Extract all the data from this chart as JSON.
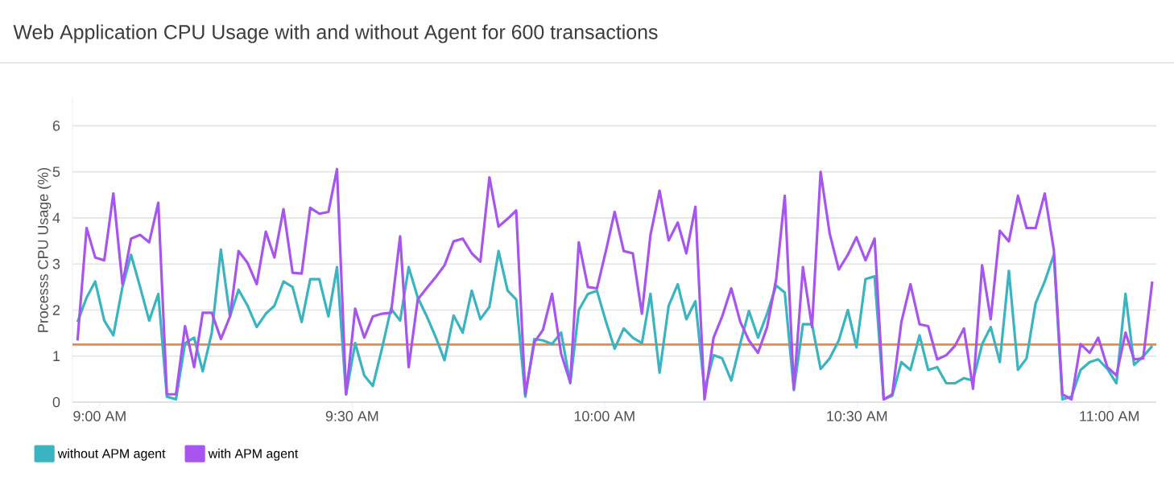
{
  "chart_data": {
    "type": "line",
    "title": "Web Application CPU Usage with and without Agent for 600 transactions",
    "ylabel": "Processs CPU Usage (%)",
    "x": [
      8.956,
      8.974,
      8.991,
      9.009,
      9.027,
      9.045,
      9.062,
      9.08,
      9.098,
      9.116,
      9.133,
      9.151,
      9.169,
      9.187,
      9.204,
      9.222,
      9.24,
      9.258,
      9.275,
      9.293,
      9.311,
      9.329,
      9.346,
      9.364,
      9.382,
      9.4,
      9.417,
      9.435,
      9.453,
      9.47,
      9.488,
      9.506,
      9.524,
      9.541,
      9.559,
      9.577,
      9.595,
      9.612,
      9.63,
      9.648,
      9.666,
      9.683,
      9.701,
      9.719,
      9.737,
      9.754,
      9.772,
      9.79,
      9.808,
      9.825,
      9.843,
      9.861,
      9.878,
      9.896,
      9.914,
      9.932,
      9.949,
      9.967,
      9.985,
      10.003,
      10.02,
      10.038,
      10.056,
      10.074,
      10.091,
      10.109,
      10.127,
      10.145,
      10.162,
      10.18,
      10.198,
      10.216,
      10.233,
      10.251,
      10.269,
      10.286,
      10.304,
      10.322,
      10.34,
      10.357,
      10.375,
      10.393,
      10.411,
      10.428,
      10.446,
      10.464,
      10.482,
      10.499,
      10.517,
      10.535,
      10.553,
      10.57,
      10.588,
      10.606,
      10.624,
      10.641,
      10.659,
      10.677,
      10.694,
      10.712,
      10.73,
      10.748,
      10.765,
      10.783,
      10.801,
      10.819,
      10.836,
      10.854,
      10.872,
      10.89,
      10.907,
      10.925,
      10.943,
      10.961,
      10.978,
      10.996,
      11.014,
      11.032,
      11.049,
      11.067,
      11.085
    ],
    "series": [
      {
        "name": "without APM agent",
        "color": "#3ab4c0",
        "values": [
          1.74,
          2.27,
          2.62,
          1.77,
          1.45,
          2.5,
          3.2,
          2.5,
          1.77,
          2.35,
          0.12,
          0.06,
          1.28,
          1.4,
          0.67,
          1.51,
          3.31,
          1.86,
          2.44,
          2.09,
          1.63,
          1.92,
          2.09,
          2.62,
          2.5,
          1.74,
          2.67,
          2.67,
          1.86,
          2.93,
          0.17,
          1.28,
          0.58,
          0.35,
          1.16,
          2.03,
          1.77,
          2.93,
          2.27,
          1.86,
          1.4,
          0.91,
          1.88,
          1.51,
          2.42,
          1.8,
          2.07,
          3.28,
          2.42,
          2.23,
          0.12,
          1.37,
          1.34,
          1.26,
          1.51,
          0.41,
          2.0,
          2.35,
          2.42,
          1.74,
          1.16,
          1.6,
          1.4,
          1.28,
          2.35,
          0.64,
          2.09,
          2.56,
          1.8,
          2.19,
          0.26,
          1.02,
          0.95,
          0.47,
          1.28,
          1.98,
          1.4,
          1.92,
          2.53,
          2.38,
          0.26,
          1.69,
          1.69,
          0.72,
          0.95,
          1.34,
          2.0,
          1.19,
          2.67,
          2.73,
          0.06,
          0.14,
          0.87,
          0.7,
          1.45,
          0.7,
          0.76,
          0.41,
          0.41,
          0.52,
          0.47,
          1.26,
          1.63,
          0.87,
          2.85,
          0.7,
          0.95,
          2.15,
          2.62,
          3.2,
          0.06,
          0.12,
          0.7,
          0.87,
          0.93,
          0.72,
          0.41,
          2.35,
          0.81,
          0.99,
          1.22
        ]
      },
      {
        "name": "with APM agent",
        "color": "#a855f0",
        "values": [
          1.34,
          3.78,
          3.14,
          3.08,
          4.53,
          2.56,
          3.55,
          3.63,
          3.47,
          4.33,
          0.17,
          0.17,
          1.65,
          0.76,
          1.94,
          1.94,
          1.37,
          1.86,
          3.28,
          3.02,
          2.56,
          3.7,
          3.14,
          4.19,
          2.81,
          2.79,
          4.22,
          4.09,
          4.13,
          5.06,
          0.17,
          2.03,
          1.4,
          1.86,
          1.92,
          1.94,
          3.6,
          0.76,
          2.23,
          2.48,
          2.72,
          2.97,
          3.49,
          3.55,
          3.23,
          3.05,
          4.88,
          3.81,
          3.98,
          4.16,
          0.17,
          1.3,
          1.57,
          2.35,
          1.05,
          0.43,
          3.47,
          2.5,
          2.47,
          3.3,
          4.13,
          3.28,
          3.23,
          1.92,
          3.63,
          4.59,
          3.51,
          3.9,
          3.23,
          4.24,
          0.06,
          1.4,
          1.86,
          2.47,
          1.74,
          1.34,
          1.07,
          1.63,
          2.67,
          4.48,
          0.29,
          2.93,
          1.63,
          5.0,
          3.66,
          2.88,
          3.2,
          3.58,
          3.08,
          3.55,
          0.06,
          0.17,
          1.74,
          2.56,
          1.69,
          1.65,
          0.93,
          1.02,
          1.22,
          1.6,
          0.29,
          2.97,
          1.8,
          3.72,
          3.49,
          4.48,
          3.78,
          3.78,
          4.53,
          3.31,
          0.17,
          0.06,
          1.26,
          1.07,
          1.4,
          0.76,
          0.58,
          1.51,
          0.93,
          0.95,
          2.62
        ]
      }
    ],
    "xlim": [
      8.946,
      11.093
    ],
    "ylim": [
      0,
      6.6
    ],
    "xticks": [
      {
        "value": 9,
        "label": "9:00 AM"
      },
      {
        "value": 9.5,
        "label": "9:30 AM"
      },
      {
        "value": 10,
        "label": "10:00 AM"
      },
      {
        "value": 10.5,
        "label": "10:30 AM"
      },
      {
        "value": 11,
        "label": "11:00 AM"
      }
    ],
    "yticks": [
      0,
      1,
      2,
      3,
      4,
      5,
      6
    ],
    "ref_lines": [
      {
        "axis": "y",
        "value": 1.25,
        "color": "#e8894a"
      }
    ],
    "grid": "y",
    "legend": "bottom left",
    "marker": "none",
    "line_style": "solid"
  }
}
